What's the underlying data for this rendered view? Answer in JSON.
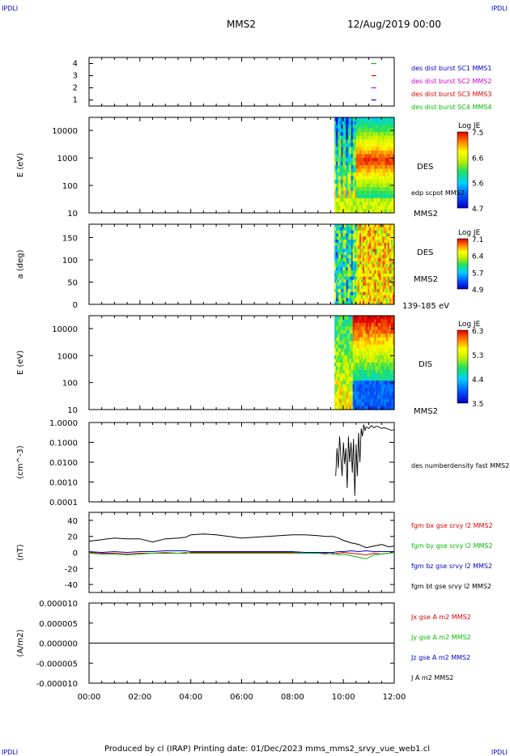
{
  "header": {
    "corner_tl": "IPDLI",
    "corner_tr": "IPDLI",
    "spacecraft": "MMS2",
    "datetime": "12/Aug/2019 00:00"
  },
  "footer": {
    "text": "Produced by cl (IRAP)   Printing date: 01/Dec/2023   mms_mms2_srvy_vue_web1.cl",
    "corner_bl": "IPDLI",
    "corner_br": "IPDLI"
  },
  "colors": {
    "mms1": "#0000cc",
    "mms2": "#cc00cc",
    "mms3": "#dd0000",
    "mms4": "#00bb00",
    "bx": "#dd0000",
    "by": "#00bb00",
    "bz": "#0000cc",
    "bt": "#000000"
  },
  "chart_data": [
    {
      "type": "scatter",
      "panel": "availability",
      "x_unit": "hours",
      "yticks": [
        "1",
        "2",
        "3",
        "4"
      ],
      "ylim": [
        0.5,
        4.5
      ],
      "series": [
        {
          "name": "des dist burst SC1 MMS1",
          "y": 1,
          "x_segments": [
            [
              11.1,
              11.3
            ]
          ]
        },
        {
          "name": "des dist burst SC2 MMS2",
          "y": 2,
          "x_segments": [
            [
              11.1,
              11.3
            ]
          ]
        },
        {
          "name": "des dist burst SC3 MMS3",
          "y": 3,
          "x_segments": [
            [
              11.1,
              11.3
            ]
          ]
        },
        {
          "name": "des dist burst SC4 MMS4",
          "y": 4,
          "x_segments": [
            [
              11.1,
              11.3
            ]
          ]
        }
      ],
      "legend": [
        "des dist burst SC1 MMS1",
        "des dist burst SC2 MMS2",
        "des dist burst SC3 MMS3",
        "des dist burst SC4 MMS4"
      ]
    },
    {
      "type": "heatmap",
      "panel": "des-energy",
      "ylabel": "E (eV)",
      "yscale": "log",
      "ylim": [
        10,
        30000
      ],
      "yticks": [
        "10",
        "100",
        "1000",
        "10000"
      ],
      "data_x_range": [
        9.65,
        12.0
      ],
      "colorbar": {
        "title": "Log JE",
        "min": 4.7,
        "max": 7.5,
        "ticks": [
          "7.5",
          "6.6",
          "5.6",
          "4.7"
        ]
      },
      "labels": [
        "DES",
        "edp scpot MMS2",
        "MMS2"
      ]
    },
    {
      "type": "heatmap",
      "panel": "des-pitch",
      "ylabel": "a (deg)",
      "ylim": [
        0,
        180
      ],
      "yticks": [
        "0",
        "50",
        "100",
        "150"
      ],
      "data_x_range": [
        9.65,
        12.0
      ],
      "colorbar": {
        "title": "Log JE",
        "min": 4.9,
        "max": 7.1,
        "ticks": [
          "7.1",
          "6.4",
          "5.7",
          "4.9"
        ]
      },
      "labels": [
        "DES",
        "MMS2",
        "139-185 eV"
      ]
    },
    {
      "type": "heatmap",
      "panel": "dis-energy",
      "ylabel": "E (eV)",
      "yscale": "log",
      "ylim": [
        10,
        30000
      ],
      "yticks": [
        "10",
        "100",
        "1000",
        "10000"
      ],
      "data_x_range": [
        9.65,
        12.0
      ],
      "colorbar": {
        "title": "Log JE",
        "min": 3.5,
        "max": 6.3,
        "ticks": [
          "6.3",
          "5.3",
          "4.4",
          "3.5"
        ]
      },
      "labels": [
        "DIS",
        "MMS2"
      ]
    },
    {
      "type": "line",
      "panel": "density",
      "ylabel": "(cm^-3)",
      "yscale": "log",
      "ylim": [
        0.0001,
        1.0
      ],
      "yticks": [
        "0.0001",
        "0.0010",
        "0.0100",
        "0.1000",
        "1.0000"
      ],
      "series": [
        {
          "name": "des numberdensity fast MMS2",
          "x": [
            9.7,
            9.75,
            9.8,
            9.85,
            9.9,
            9.95,
            10.0,
            10.05,
            10.1,
            10.15,
            10.2,
            10.25,
            10.3,
            10.35,
            10.4,
            10.45,
            10.5,
            10.55,
            10.6,
            10.65,
            10.7,
            10.75,
            10.8,
            10.85,
            10.9,
            11.0,
            11.1,
            11.2,
            11.3,
            11.4,
            11.5,
            11.6,
            11.7,
            11.8,
            11.9,
            12.0
          ],
          "y": [
            0.002,
            0.05,
            0.005,
            0.2,
            0.02,
            0.002,
            0.1,
            0.008,
            0.05,
            0.0005,
            0.2,
            0.01,
            0.1,
            0.003,
            0.15,
            0.0002,
            0.08,
            0.002,
            0.3,
            0.01,
            0.5,
            0.2,
            0.8,
            0.4,
            0.6,
            0.5,
            0.7,
            0.55,
            0.65,
            0.6,
            0.5,
            0.55,
            0.5,
            0.45,
            0.4,
            0.45
          ]
        }
      ],
      "legend": [
        "des numberdensity fast MMS2"
      ]
    },
    {
      "type": "line",
      "panel": "magnetic-field",
      "ylabel": "(nT)",
      "ylim": [
        -50,
        50
      ],
      "yticks": [
        "-40",
        "-20",
        "0",
        "20",
        "40"
      ],
      "x": [
        0,
        0.5,
        1,
        1.5,
        2,
        2.5,
        3,
        3.5,
        3.8,
        4,
        4.5,
        5,
        5.5,
        6,
        6.5,
        7,
        7.5,
        8,
        8.5,
        9,
        9.3,
        9.6,
        9.8,
        10,
        10.3,
        10.6,
        10.9,
        11.2,
        11.5,
        11.8,
        12
      ],
      "series": [
        {
          "name": "fgm bx gse srvy l2 MMS2",
          "values": [
            0,
            -1,
            -1,
            -2,
            -1,
            -1,
            -1,
            -1,
            -1,
            0,
            0,
            0,
            0,
            0,
            0,
            0,
            0,
            0,
            -1,
            -1,
            -1,
            -2,
            -1,
            0,
            -1,
            -2,
            -3,
            -1,
            -2,
            -1,
            0
          ]
        },
        {
          "name": "fgm by gse srvy l2 MMS2",
          "values": [
            -1,
            -2,
            -2,
            -3,
            -2,
            -1,
            0,
            -1,
            0,
            -1,
            -1,
            -1,
            -1,
            -1,
            -1,
            -1,
            -1,
            -1,
            -1,
            -1,
            -2,
            -1,
            -3,
            -2,
            -4,
            -6,
            -8,
            -3,
            -2,
            -1,
            0
          ]
        },
        {
          "name": "fgm bz gse srvy l2 MMS2",
          "values": [
            1,
            0,
            1,
            0,
            1,
            1,
            2,
            2,
            2,
            1,
            1,
            1,
            1,
            1,
            1,
            1,
            1,
            1,
            0,
            0,
            0,
            0,
            1,
            1,
            2,
            1,
            2,
            1,
            1,
            1,
            1
          ]
        },
        {
          "name": "fgm bt gse srvy l2 MMS2",
          "values": [
            14,
            16,
            18,
            17,
            17,
            13,
            17,
            18,
            19,
            22,
            23,
            22,
            20,
            18,
            19,
            20,
            21,
            22,
            22,
            21,
            20,
            20,
            18,
            15,
            12,
            10,
            6,
            8,
            10,
            7,
            8
          ]
        }
      ],
      "legend": [
        "fgm bx gse srvy l2 MMS2",
        "fgm by gse srvy l2 MMS2",
        "fgm bz gse srvy l2 MMS2",
        "fgm bt gse srvy l2 MMS2"
      ]
    },
    {
      "type": "line",
      "panel": "current",
      "ylabel": "(A/m2)",
      "ylim": [
        -1e-05,
        1e-05
      ],
      "yticks": [
        "-0.000010",
        "-0.000005",
        "0.000000",
        "0.000005",
        "0.000010"
      ],
      "series": [
        {
          "name": "Jx gse A m2 MMS2",
          "values": [
            0,
            0
          ]
        },
        {
          "name": "Jy gse A m2 MMS2",
          "values": [
            0,
            0
          ]
        },
        {
          "name": "Jz gse A m2 MMS2",
          "values": [
            0,
            0
          ]
        },
        {
          "name": "J A m2 MMS2",
          "values": [
            0,
            0
          ]
        }
      ],
      "legend": [
        "Jx gse A m2 MMS2",
        "Jy gse A m2 MMS2",
        "Jz gse A m2 MMS2",
        "J A m2 MMS2"
      ],
      "xlim": [
        0,
        12
      ],
      "xticks": [
        "00:00",
        "02:00",
        "04:00",
        "06:00",
        "08:00",
        "10:00",
        "12:00"
      ]
    }
  ]
}
